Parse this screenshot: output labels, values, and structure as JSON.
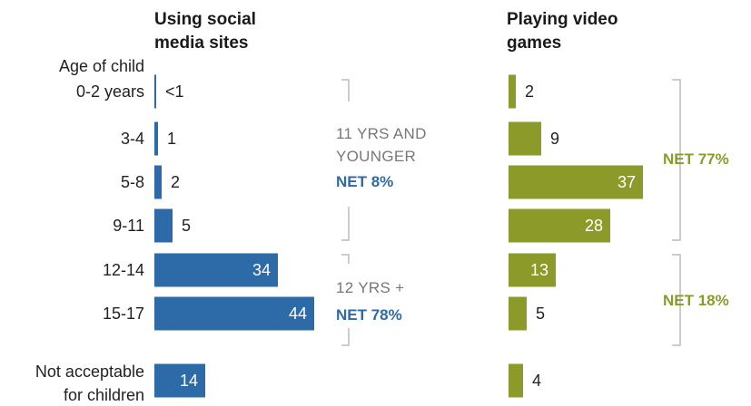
{
  "chart_data": {
    "type": "bar",
    "orientation": "horizontal",
    "category_header": "Age of child",
    "categories": [
      "0-2 years",
      "3-4",
      "5-8",
      "9-11",
      "12-14",
      "15-17"
    ],
    "extra_category": [
      "Not acceptable",
      "for children"
    ],
    "series": [
      {
        "name": "Using social media sites",
        "title_lines": [
          "Using social",
          "media sites"
        ],
        "color": "#2d6aa8",
        "values": [
          0.5,
          1,
          2,
          5,
          34,
          44
        ],
        "labels": [
          "<1",
          "1",
          "2",
          "5",
          "34",
          "44"
        ],
        "extra_value": 14,
        "extra_label": "14"
      },
      {
        "name": "Playing video games",
        "title_lines": [
          "Playing video",
          "games"
        ],
        "color": "#8c9a2a",
        "values": [
          2,
          9,
          37,
          28,
          13,
          5
        ],
        "labels": [
          "2",
          "9",
          "37",
          "28",
          "13",
          "5"
        ],
        "extra_value": 4,
        "extra_label": "4"
      }
    ],
    "annotations": {
      "social_young": [
        "11 YRS AND",
        "YOUNGER"
      ],
      "social_young_net": "NET 8%",
      "social_old": "12 YRS +",
      "social_old_net": "NET 78%",
      "games_young_net": "NET 77%",
      "games_old_net": "NET 18%"
    },
    "colors": {
      "blue": "#2d6aa8",
      "green": "#8c9a2a",
      "bracket": "#bbbbbb",
      "group_text": "#777777"
    }
  }
}
